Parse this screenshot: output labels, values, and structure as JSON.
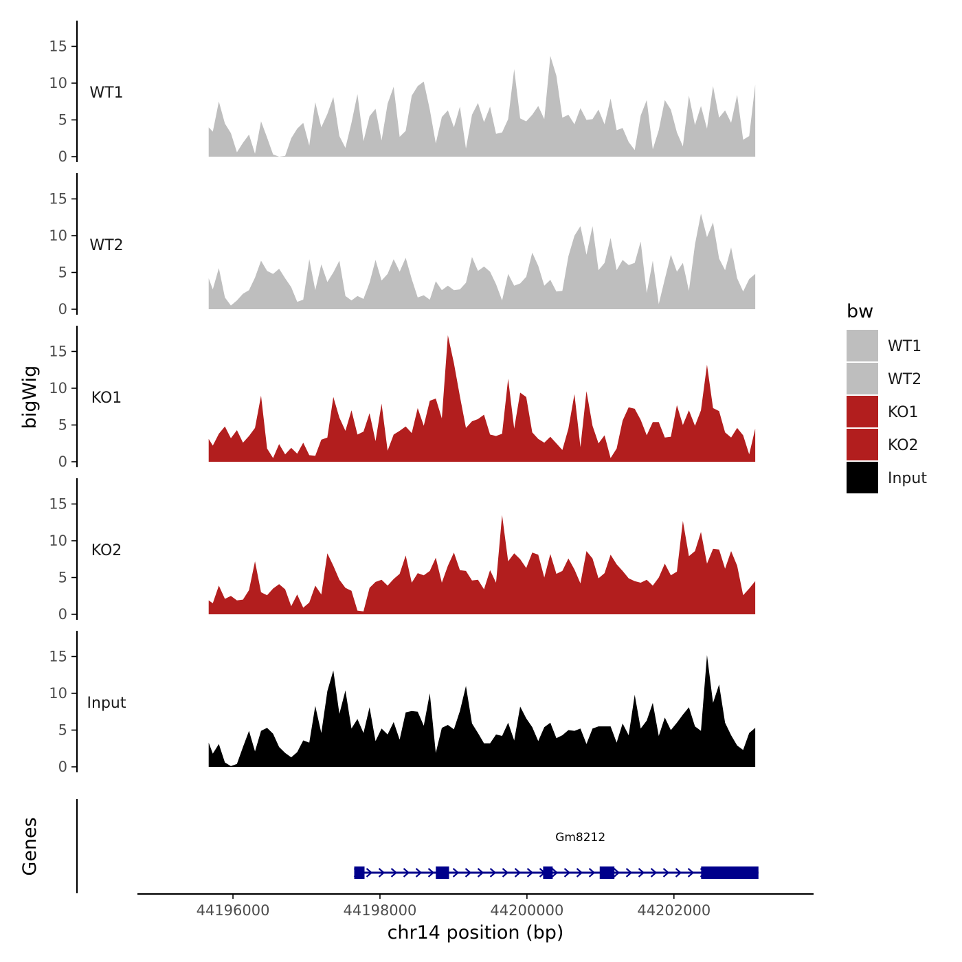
{
  "colors": {
    "WT1": "#bebebe",
    "WT2": "#bebebe",
    "KO1": "#b21e1e",
    "KO2": "#b21e1e",
    "Input": "#000000",
    "gene": "#00008b",
    "axis": "#000000"
  },
  "chart_data": {
    "type": "area",
    "title": "",
    "xlabel": "chr14 position (bp)",
    "ylabel": "bigWig",
    "genes_label": "Genes",
    "xlim": [
      44194700,
      44203900
    ],
    "ylim": [
      0,
      18.5
    ],
    "x_ticks": [
      44196000,
      44198000,
      44200000,
      44202000
    ],
    "x_tick_labels": [
      "44196000",
      "44198000",
      "44200000",
      "44202000"
    ],
    "y_ticks": [
      0,
      5,
      10,
      15
    ],
    "y_tick_labels": [
      "0",
      "5",
      "10",
      "15"
    ],
    "legend": {
      "title": "bw",
      "entries": [
        "WT1",
        "WT2",
        "KO1",
        "KO2",
        "Input"
      ]
    },
    "series": [
      {
        "name": "WT1",
        "x": [
          44195670,
          44195726,
          44195808,
          44195890,
          44195972,
          44196054,
          44196136,
          44196218,
          44196300,
          44196382,
          44196464,
          44196546,
          44196628,
          44196710,
          44196792,
          44196874,
          44196956,
          44197038,
          44197120,
          44197202,
          44197284,
          44197366,
          44197448,
          44197530,
          44197612,
          44197694,
          44197776,
          44197858,
          44197940,
          44198022,
          44198104,
          44198186,
          44198268,
          44198350,
          44198432,
          44198514,
          44198596,
          44198678,
          44198760,
          44198842,
          44198924,
          44199006,
          44199088,
          44199170,
          44199252,
          44199334,
          44199416,
          44199498,
          44199580,
          44199662,
          44199744,
          44199826,
          44199908,
          44199990,
          44200072,
          44200154,
          44200236,
          44200318,
          44200400,
          44200482,
          44200564,
          44200646,
          44200728,
          44200810,
          44200892,
          44200974,
          44201056,
          44201138,
          44201220,
          44201302,
          44201384,
          44201466,
          44201548,
          44201630,
          44201712,
          44201794,
          44201876,
          44201958,
          44202040,
          44202122,
          44202204,
          44202286,
          44202368,
          44202450,
          44202532,
          44202614,
          44202696,
          44202778,
          44202860,
          44202942,
          44203024,
          44203106
        ],
        "values": [
          4.0,
          3.4,
          7.5,
          4.5,
          3.2,
          0.6,
          1.9,
          3.0,
          0.4,
          4.8,
          2.6,
          0.3,
          0.0,
          0.1,
          2.5,
          3.8,
          4.6,
          1.5,
          7.4,
          4.0,
          5.8,
          8.1,
          2.8,
          1.2,
          4.6,
          8.5,
          2.1,
          5.5,
          6.5,
          2.2,
          7.2,
          9.5,
          2.7,
          3.5,
          8.3,
          9.6,
          10.2,
          6.4,
          1.8,
          5.4,
          6.3,
          4.0,
          6.8,
          1.1,
          5.7,
          7.3,
          4.7,
          6.8,
          3.1,
          3.3,
          5.1,
          11.9,
          5.2,
          4.8,
          5.7,
          6.9,
          5.1,
          13.7,
          11.0,
          5.3,
          5.7,
          4.4,
          6.6,
          5.0,
          5.1,
          6.4,
          4.4,
          7.9,
          3.6,
          3.9,
          2.0,
          0.9,
          5.6,
          7.7,
          1.0,
          3.6,
          7.7,
          6.4,
          3.3,
          1.4,
          8.3,
          4.3,
          6.9,
          3.8,
          9.6,
          5.3,
          6.3,
          4.6,
          8.4,
          2.3,
          2.8,
          9.8
        ]
      },
      {
        "name": "WT2",
        "x": [
          44195670,
          44195726,
          44195808,
          44195890,
          44195972,
          44196054,
          44196136,
          44196218,
          44196300,
          44196382,
          44196464,
          44196546,
          44196628,
          44196710,
          44196792,
          44196874,
          44196956,
          44197038,
          44197120,
          44197202,
          44197284,
          44197366,
          44197448,
          44197530,
          44197612,
          44197694,
          44197776,
          44197858,
          44197940,
          44198022,
          44198104,
          44198186,
          44198268,
          44198350,
          44198432,
          44198514,
          44198596,
          44198678,
          44198760,
          44198842,
          44198924,
          44199006,
          44199088,
          44199170,
          44199252,
          44199334,
          44199416,
          44199498,
          44199580,
          44199662,
          44199744,
          44199826,
          44199908,
          44199990,
          44200072,
          44200154,
          44200236,
          44200318,
          44200400,
          44200482,
          44200564,
          44200646,
          44200728,
          44200810,
          44200892,
          44200974,
          44201056,
          44201138,
          44201220,
          44201302,
          44201384,
          44201466,
          44201548,
          44201630,
          44201712,
          44201794,
          44201876,
          44201958,
          44202040,
          44202122,
          44202204,
          44202286,
          44202368,
          44202450,
          44202532,
          44202614,
          44202696,
          44202778,
          44202860,
          44202942,
          44203024,
          44203106
        ],
        "values": [
          4.2,
          2.7,
          5.6,
          1.6,
          0.5,
          1.2,
          2.1,
          2.6,
          4.3,
          6.6,
          5.2,
          4.8,
          5.5,
          4.2,
          3.0,
          1.0,
          1.3,
          6.8,
          2.6,
          6.1,
          3.7,
          5.0,
          6.6,
          1.8,
          1.2,
          1.8,
          1.4,
          3.6,
          6.7,
          3.9,
          4.8,
          6.8,
          5.1,
          7.0,
          4.1,
          1.6,
          1.9,
          1.3,
          3.8,
          2.6,
          3.2,
          2.6,
          2.7,
          3.6,
          7.1,
          5.2,
          5.8,
          5.1,
          3.4,
          1.2,
          4.8,
          3.2,
          3.5,
          4.4,
          7.7,
          5.9,
          3.2,
          4.0,
          2.4,
          2.5,
          7.2,
          10.0,
          11.3,
          7.4,
          11.3,
          5.3,
          6.3,
          9.7,
          5.3,
          6.7,
          6.0,
          6.3,
          9.2,
          2.2,
          6.6,
          0.7,
          4.1,
          7.4,
          5.1,
          6.3,
          2.5,
          8.8,
          13.0,
          9.8,
          11.8,
          6.9,
          5.3,
          8.4,
          4.2,
          2.4,
          4.1,
          4.8
        ]
      },
      {
        "name": "KO1",
        "x": [
          44195670,
          44195726,
          44195808,
          44195890,
          44195972,
          44196054,
          44196136,
          44196218,
          44196300,
          44196382,
          44196464,
          44196546,
          44196628,
          44196710,
          44196792,
          44196874,
          44196956,
          44197038,
          44197120,
          44197202,
          44197284,
          44197366,
          44197448,
          44197530,
          44197612,
          44197694,
          44197776,
          44197858,
          44197940,
          44198022,
          44198104,
          44198186,
          44198268,
          44198350,
          44198432,
          44198514,
          44198596,
          44198678,
          44198760,
          44198842,
          44198924,
          44199006,
          44199088,
          44199170,
          44199252,
          44199334,
          44199416,
          44199498,
          44199580,
          44199662,
          44199744,
          44199826,
          44199908,
          44199990,
          44200072,
          44200154,
          44200236,
          44200318,
          44200400,
          44200482,
          44200564,
          44200646,
          44200728,
          44200810,
          44200892,
          44200974,
          44201056,
          44201138,
          44201220,
          44201302,
          44201384,
          44201466,
          44201548,
          44201630,
          44201712,
          44201794,
          44201876,
          44201958,
          44202040,
          44202122,
          44202204,
          44202286,
          44202368,
          44202450,
          44202532,
          44202614,
          44202696,
          44202778,
          44202860,
          44202942,
          44203024,
          44203106
        ],
        "values": [
          3.1,
          2.2,
          3.8,
          4.8,
          3.2,
          4.3,
          2.6,
          3.5,
          4.6,
          9.0,
          1.8,
          0.5,
          2.4,
          1.0,
          1.9,
          1.1,
          2.6,
          0.9,
          0.8,
          3.0,
          3.3,
          8.8,
          6.0,
          4.2,
          7.0,
          3.7,
          4.1,
          6.6,
          2.8,
          7.9,
          1.5,
          3.7,
          4.2,
          4.8,
          3.9,
          7.3,
          4.9,
          8.3,
          8.6,
          5.9,
          17.2,
          13.4,
          8.9,
          4.6,
          5.5,
          5.8,
          6.4,
          3.7,
          3.5,
          3.8,
          11.3,
          4.5,
          9.4,
          8.8,
          4.0,
          3.1,
          2.6,
          3.4,
          2.5,
          1.6,
          4.5,
          9.2,
          2.0,
          9.6,
          4.9,
          2.5,
          3.6,
          0.5,
          1.8,
          5.6,
          7.4,
          7.2,
          5.7,
          3.6,
          5.4,
          5.4,
          3.3,
          3.4,
          7.7,
          5.0,
          7.0,
          4.9,
          7.0,
          13.2,
          7.3,
          6.9,
          4.0,
          3.3,
          4.6,
          3.6,
          1.0,
          4.5
        ]
      },
      {
        "name": "KO2",
        "x": [
          44195670,
          44195726,
          44195808,
          44195890,
          44195972,
          44196054,
          44196136,
          44196218,
          44196300,
          44196382,
          44196464,
          44196546,
          44196628,
          44196710,
          44196792,
          44196874,
          44196956,
          44197038,
          44197120,
          44197202,
          44197284,
          44197366,
          44197448,
          44197530,
          44197612,
          44197694,
          44197776,
          44197858,
          44197940,
          44198022,
          44198104,
          44198186,
          44198268,
          44198350,
          44198432,
          44198514,
          44198596,
          44198678,
          44198760,
          44198842,
          44198924,
          44199006,
          44199088,
          44199170,
          44199252,
          44199334,
          44199416,
          44199498,
          44199580,
          44199662,
          44199744,
          44199826,
          44199908,
          44199990,
          44200072,
          44200154,
          44200236,
          44200318,
          44200400,
          44200482,
          44200564,
          44200646,
          44200728,
          44200810,
          44200892,
          44200974,
          44201056,
          44201138,
          44201220,
          44201302,
          44201384,
          44201466,
          44201548,
          44201630,
          44201712,
          44201794,
          44201876,
          44201958,
          44202040,
          44202122,
          44202204,
          44202286,
          44202368,
          44202450,
          44202532,
          44202614,
          44202696,
          44202778,
          44202860,
          44202942,
          44203024,
          44203106
        ],
        "values": [
          1.9,
          1.5,
          3.9,
          2.1,
          2.5,
          1.9,
          2.0,
          3.3,
          7.2,
          3.0,
          2.6,
          3.5,
          4.1,
          3.4,
          1.1,
          2.7,
          0.9,
          1.6,
          3.9,
          2.7,
          8.3,
          6.6,
          4.7,
          3.6,
          3.2,
          0.5,
          0.4,
          3.6,
          4.4,
          4.7,
          3.9,
          4.8,
          5.5,
          8.0,
          4.3,
          5.6,
          5.3,
          5.9,
          7.7,
          4.3,
          6.6,
          8.4,
          6.0,
          5.9,
          4.6,
          4.7,
          3.4,
          6.0,
          4.3,
          13.5,
          7.2,
          8.3,
          7.5,
          6.3,
          8.4,
          8.1,
          5.0,
          8.2,
          5.5,
          5.9,
          7.6,
          6.1,
          4.2,
          8.6,
          7.6,
          4.9,
          5.6,
          8.1,
          6.8,
          5.9,
          4.9,
          4.5,
          4.3,
          4.7,
          3.9,
          5.0,
          6.9,
          5.3,
          5.8,
          12.7,
          7.9,
          8.6,
          11.2,
          6.9,
          8.9,
          8.8,
          6.2,
          8.6,
          6.6,
          2.6,
          3.5,
          4.5
        ]
      },
      {
        "name": "Input",
        "x": [
          44195670,
          44195726,
          44195808,
          44195890,
          44195972,
          44196054,
          44196136,
          44196218,
          44196300,
          44196382,
          44196464,
          44196546,
          44196628,
          44196710,
          44196792,
          44196874,
          44196956,
          44197038,
          44197120,
          44197202,
          44197284,
          44197366,
          44197448,
          44197530,
          44197612,
          44197694,
          44197776,
          44197858,
          44197940,
          44198022,
          44198104,
          44198186,
          44198268,
          44198350,
          44198432,
          44198514,
          44198596,
          44198678,
          44198760,
          44198842,
          44198924,
          44199006,
          44199088,
          44199170,
          44199252,
          44199334,
          44199416,
          44199498,
          44199580,
          44199662,
          44199744,
          44199826,
          44199908,
          44199990,
          44200072,
          44200154,
          44200236,
          44200318,
          44200400,
          44200482,
          44200564,
          44200646,
          44200728,
          44200810,
          44200892,
          44200974,
          44201056,
          44201138,
          44201220,
          44201302,
          44201384,
          44201466,
          44201548,
          44201630,
          44201712,
          44201794,
          44201876,
          44201958,
          44202040,
          44202122,
          44202204,
          44202286,
          44202368,
          44202450,
          44202532,
          44202614,
          44202696,
          44202778,
          44202860,
          44202942,
          44203024,
          44203106
        ],
        "values": [
          3.3,
          1.8,
          3.1,
          0.6,
          0.1,
          0.4,
          2.7,
          4.9,
          2.1,
          4.9,
          5.3,
          4.5,
          2.7,
          1.9,
          1.3,
          2.0,
          3.6,
          3.3,
          8.3,
          4.6,
          10.3,
          13.1,
          7.2,
          10.4,
          5.2,
          6.5,
          4.6,
          8.1,
          3.5,
          5.2,
          4.4,
          6.1,
          3.7,
          7.4,
          7.6,
          7.5,
          5.6,
          10.0,
          1.9,
          5.3,
          5.7,
          5.1,
          7.6,
          11.0,
          5.9,
          4.6,
          3.2,
          3.2,
          4.4,
          4.2,
          6.0,
          3.6,
          8.2,
          6.6,
          5.4,
          3.5,
          5.4,
          6.0,
          3.9,
          4.3,
          5.0,
          4.9,
          5.2,
          3.1,
          5.2,
          5.5,
          5.5,
          5.5,
          3.3,
          5.9,
          4.3,
          9.8,
          5.2,
          6.3,
          8.7,
          4.2,
          6.7,
          5.0,
          6.0,
          7.1,
          8.1,
          5.5,
          4.9,
          15.2,
          8.7,
          11.2,
          6.0,
          4.3,
          2.9,
          2.3,
          4.6,
          5.3
        ]
      }
    ],
    "gene": {
      "name": "Gm8212",
      "start": 44197650,
      "end": 44203150,
      "strand": "+",
      "exons": [
        [
          44197650,
          44197790
        ],
        [
          44198760,
          44198940
        ],
        [
          44200220,
          44200350
        ],
        [
          44200990,
          44201190
        ],
        [
          44202370,
          44203150
        ]
      ]
    }
  }
}
